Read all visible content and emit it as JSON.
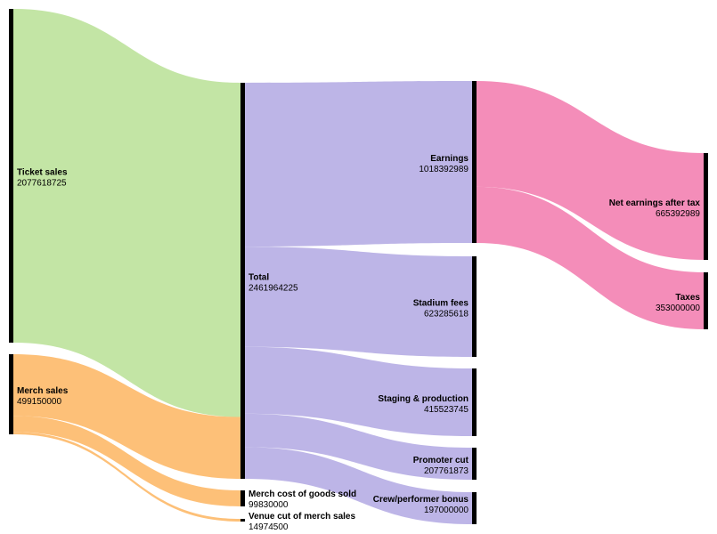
{
  "chart_data": {
    "type": "sankey",
    "nodes": [
      {
        "id": "ticket",
        "name": "Ticket sales",
        "value": "2077618725",
        "column": 0,
        "label_side": "right",
        "label_align": "center"
      },
      {
        "id": "merch",
        "name": "Merch sales",
        "value": "499150000",
        "column": 0,
        "label_side": "right",
        "label_align": "center"
      },
      {
        "id": "total",
        "name": "Total",
        "value": "2461964225",
        "column": 1,
        "label_side": "right",
        "label_align": "center"
      },
      {
        "id": "mcogs",
        "name": "Merch cost of goods sold",
        "value": "99830000",
        "column": 1,
        "label_side": "right",
        "label_align": "center"
      },
      {
        "id": "venue",
        "name": "Venue cut of merch sales",
        "value": "14974500",
        "column": 1,
        "label_side": "right",
        "label_align": "center"
      },
      {
        "id": "earnings",
        "name": "Earnings",
        "value": "1018392989",
        "column": 2,
        "label_side": "left",
        "label_align": "center"
      },
      {
        "id": "stadium",
        "name": "Stadium fees",
        "value": "623285618",
        "column": 2,
        "label_side": "left",
        "label_align": "center"
      },
      {
        "id": "staging",
        "name": "Staging & production",
        "value": "415523745",
        "column": 2,
        "label_side": "left",
        "label_align": "center"
      },
      {
        "id": "promoter",
        "name": "Promoter cut",
        "value": "207761873",
        "column": 2,
        "label_side": "left",
        "label_align": "center"
      },
      {
        "id": "crew",
        "name": "Crew/performer bonus",
        "value": "197000000",
        "column": 2,
        "label_side": "left",
        "label_align": "top"
      },
      {
        "id": "net",
        "name": "Net earnings after tax",
        "value": "665392989",
        "column": 3,
        "label_side": "left",
        "label_align": "center"
      },
      {
        "id": "taxes",
        "name": "Taxes",
        "value": "353000000",
        "column": 3,
        "label_side": "left",
        "label_align": "center"
      }
    ],
    "links": [
      {
        "source": "ticket",
        "target": "total",
        "value": 2077618725,
        "color": "#c0e4a0"
      },
      {
        "source": "merch",
        "target": "total",
        "value": 384345500,
        "color": "#fdbd71"
      },
      {
        "source": "merch",
        "target": "mcogs",
        "value": 99830000,
        "color": "#fdbd71"
      },
      {
        "source": "merch",
        "target": "venue",
        "value": 14974500,
        "color": "#fdbd71"
      },
      {
        "source": "total",
        "target": "earnings",
        "value": 1018392989,
        "color": "#b9b1e6"
      },
      {
        "source": "total",
        "target": "stadium",
        "value": 623285618,
        "color": "#b9b1e6"
      },
      {
        "source": "total",
        "target": "staging",
        "value": 415523745,
        "color": "#b9b1e6"
      },
      {
        "source": "total",
        "target": "promoter",
        "value": 207761873,
        "color": "#b9b1e6"
      },
      {
        "source": "total",
        "target": "crew",
        "value": 197000000,
        "color": "#b9b1e6"
      },
      {
        "source": "earnings",
        "target": "net",
        "value": 665392989,
        "color": "#f387b5"
      },
      {
        "source": "earnings",
        "target": "taxes",
        "value": 353000000,
        "color": "#f387b5"
      }
    ],
    "node_color": "#000000",
    "link_opacity": 0.95
  }
}
